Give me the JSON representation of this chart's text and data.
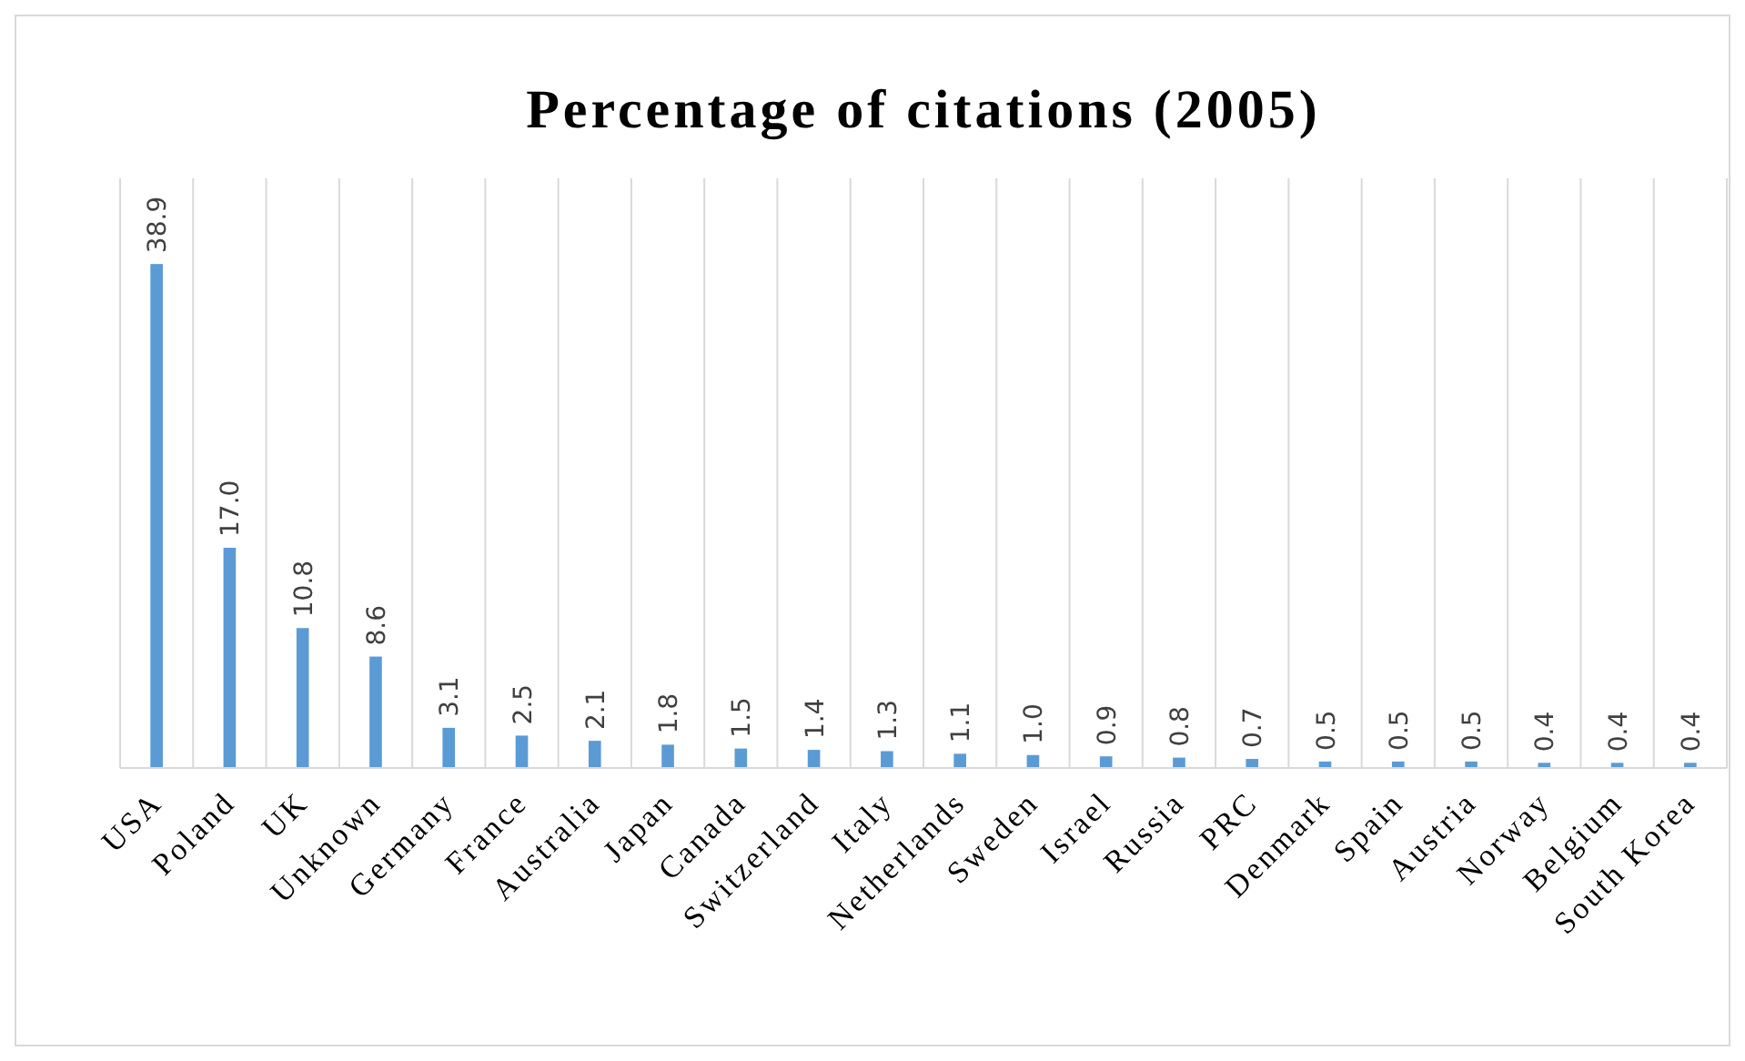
{
  "chart_data": {
    "type": "bar",
    "title": "Percentage of citations (2005)",
    "categories": [
      "USA",
      "Poland",
      "UK",
      "Unknown",
      "Germany",
      "France",
      "Australia",
      "Japan",
      "Canada",
      "Switzerland",
      "Italy",
      "Netherlands",
      "Sweden",
      "Israel",
      "Russia",
      "PRC",
      "Denmark",
      "Spain",
      "Austria",
      "Norway",
      "Belgium",
      "South Korea"
    ],
    "values": [
      38.9,
      17.0,
      10.8,
      8.6,
      3.1,
      2.5,
      2.1,
      1.8,
      1.5,
      1.4,
      1.3,
      1.1,
      1.0,
      0.9,
      0.8,
      0.7,
      0.5,
      0.5,
      0.5,
      0.4,
      0.4,
      0.4
    ],
    "value_labels": [
      "38.9",
      "17.0",
      "10.8",
      "8.6",
      "3.1",
      "2.5",
      "2.1",
      "1.8",
      "1.5",
      "1.4",
      "1.3",
      "1.1",
      "1.0",
      "0.9",
      "0.8",
      "0.7",
      "0.5",
      "0.5",
      "0.5",
      "0.4",
      "0.4",
      "0.4"
    ],
    "color": "#5b9bd5",
    "grid": "x"
  }
}
